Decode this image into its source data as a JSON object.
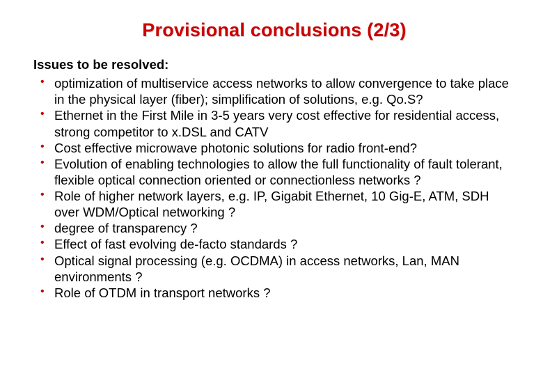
{
  "title": "Provisional conclusions (2/3)",
  "subheading": "Issues to be resolved:",
  "colors": {
    "title_color": "#cc0000",
    "title_shadow": "#d9d9d9",
    "bullet_color": "#cc0000",
    "body_color": "#000000",
    "background": "#ffffff"
  },
  "typography": {
    "title_fontsize": 27,
    "body_fontsize": 18.5,
    "line_height": 1.25
  },
  "bullets": [
    "optimization of multiservice access networks to allow convergence to take place in the physical layer (fiber); simplification of solutions, e.g. Qo.S?",
    "Ethernet in the First Mile in 3-5 years very cost effective for residential access, strong competitor to x.DSL and CATV",
    "Cost effective microwave photonic solutions for radio front-end?",
    "Evolution of enabling technologies to allow the full functionality of fault tolerant, flexible optical connection oriented or connectionless networks ?",
    "Role of higher network layers, e.g. IP, Gigabit Ethernet, 10 Gig-E, ATM, SDH over WDM/Optical networking ?",
    "degree of transparency ?",
    "Effect of fast evolving de-facto standards ?",
    "Optical signal processing (e.g. OCDMA) in access networks, Lan, MAN environments ?",
    "Role of OTDM  in transport networks ?"
  ]
}
